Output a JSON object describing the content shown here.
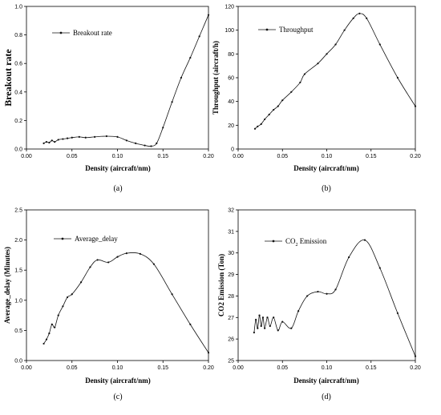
{
  "chart_data": [
    {
      "type": "line",
      "panel_label": "(a)",
      "xlabel": "Density (aircraft/nm)",
      "ylabel": "Breakout rate",
      "xlim": [
        0.0,
        0.2
      ],
      "ylim": [
        0.0,
        1.0
      ],
      "xticks": [
        "0.00",
        "0.05",
        "0.10",
        "0.15",
        "0.20"
      ],
      "yticks": [
        "0.0",
        "0.2",
        "0.4",
        "0.6",
        "0.8",
        "1.0"
      ],
      "legend_position": "top-left",
      "series": [
        {
          "name": "Breakout rate",
          "x": [
            0.019,
            0.022,
            0.025,
            0.028,
            0.031,
            0.035,
            0.04,
            0.045,
            0.05,
            0.058,
            0.065,
            0.075,
            0.088,
            0.1,
            0.11,
            0.12,
            0.13,
            0.137,
            0.143,
            0.15,
            0.16,
            0.17,
            0.18,
            0.19,
            0.2
          ],
          "y": [
            0.04,
            0.05,
            0.045,
            0.06,
            0.05,
            0.065,
            0.07,
            0.075,
            0.08,
            0.085,
            0.08,
            0.085,
            0.09,
            0.085,
            0.06,
            0.04,
            0.025,
            0.02,
            0.04,
            0.15,
            0.33,
            0.5,
            0.64,
            0.79,
            0.94
          ]
        }
      ]
    },
    {
      "type": "line",
      "panel_label": "(b)",
      "xlabel": "Density (aircraft/nm)",
      "ylabel": "Throughput (aircraft/h)",
      "xlim": [
        0.0,
        0.2
      ],
      "ylim": [
        0,
        120
      ],
      "xticks": [
        "0.00",
        "0.05",
        "0.10",
        "0.15",
        "0.20"
      ],
      "yticks": [
        "0",
        "20",
        "40",
        "60",
        "80",
        "100",
        "120"
      ],
      "legend_position": "top-left",
      "series": [
        {
          "name": "Throughput",
          "x": [
            0.019,
            0.022,
            0.026,
            0.03,
            0.035,
            0.04,
            0.045,
            0.05,
            0.06,
            0.07,
            0.075,
            0.09,
            0.1,
            0.11,
            0.12,
            0.13,
            0.137,
            0.145,
            0.16,
            0.18,
            0.2
          ],
          "y": [
            17,
            19,
            21,
            25,
            29,
            33,
            36,
            41,
            48,
            56,
            63,
            72,
            80,
            88,
            100,
            110,
            114,
            110,
            88,
            60,
            36
          ]
        }
      ]
    },
    {
      "type": "line",
      "panel_label": "(c)",
      "xlabel": "Density (aircraft/nm)",
      "ylabel": "Average_delay (Minutes)",
      "xlim": [
        0.0,
        0.2
      ],
      "ylim": [
        0.0,
        2.5
      ],
      "xticks": [
        "0.00",
        "0.05",
        "0.10",
        "0.15",
        "0.20"
      ],
      "yticks": [
        "0.0",
        "0.5",
        "1.0",
        "1.5",
        "2.0",
        "2.5"
      ],
      "legend_position": "top-left",
      "series": [
        {
          "name": "Average_delay",
          "x": [
            0.019,
            0.022,
            0.025,
            0.028,
            0.031,
            0.035,
            0.04,
            0.045,
            0.05,
            0.06,
            0.07,
            0.078,
            0.09,
            0.1,
            0.11,
            0.125,
            0.14,
            0.16,
            0.18,
            0.2
          ],
          "y": [
            0.28,
            0.35,
            0.45,
            0.6,
            0.55,
            0.75,
            0.9,
            1.05,
            1.1,
            1.3,
            1.55,
            1.67,
            1.63,
            1.72,
            1.78,
            1.77,
            1.6,
            1.1,
            0.6,
            0.13
          ]
        }
      ]
    },
    {
      "type": "line",
      "panel_label": "(d)",
      "xlabel": "Density (aircraft/nm)",
      "ylabel": "CO2 Emission (Ton)",
      "xlim": [
        0.0,
        0.2
      ],
      "ylim": [
        25,
        32
      ],
      "xticks": [
        "0.00",
        "0.05",
        "0.10",
        "0.15",
        "0.20"
      ],
      "yticks": [
        "25",
        "26",
        "27",
        "28",
        "29",
        "30",
        "31",
        "32"
      ],
      "legend_position": "top-left",
      "series": [
        {
          "name": "CO2 Emission",
          "name_base": "CO",
          "name_sub": "2",
          "name_rest": " Emission",
          "x": [
            0.018,
            0.02,
            0.022,
            0.024,
            0.026,
            0.028,
            0.03,
            0.033,
            0.036,
            0.04,
            0.045,
            0.05,
            0.06,
            0.068,
            0.078,
            0.09,
            0.1,
            0.11,
            0.125,
            0.143,
            0.16,
            0.18,
            0.2
          ],
          "y": [
            26.3,
            26.9,
            26.5,
            27.1,
            26.6,
            27.0,
            26.5,
            27.0,
            26.6,
            27.0,
            26.4,
            26.8,
            26.5,
            27.3,
            28.0,
            28.2,
            28.1,
            28.3,
            29.8,
            30.6,
            29.3,
            27.2,
            25.2
          ]
        }
      ]
    }
  ]
}
